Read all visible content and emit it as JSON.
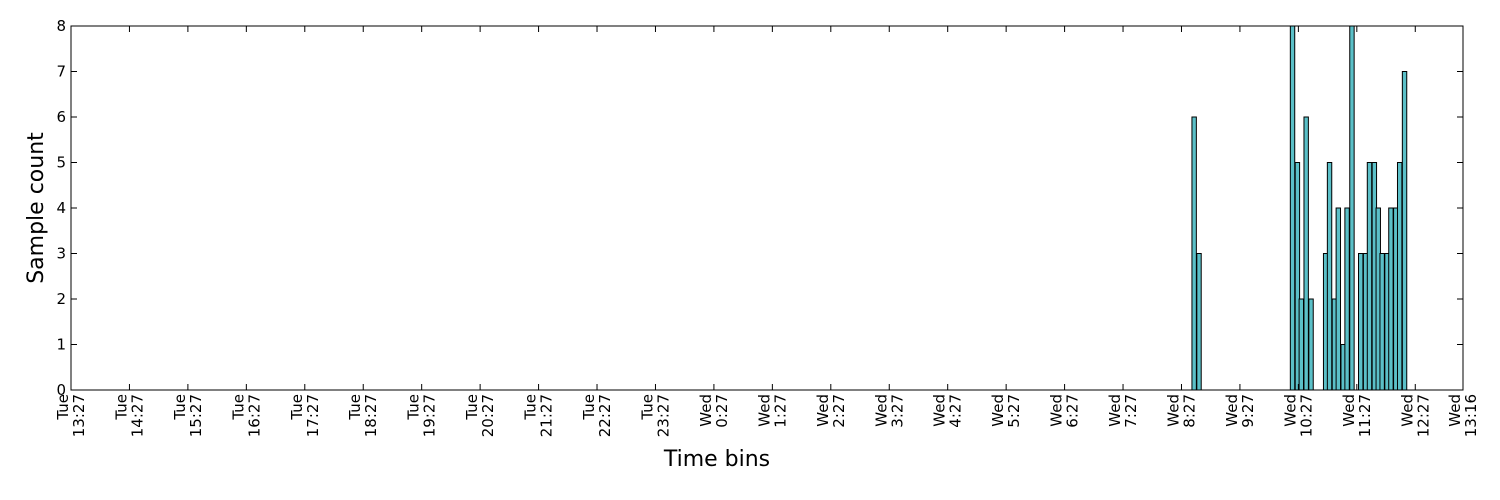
{
  "chart_data": {
    "type": "bar",
    "title": "",
    "xlabel": "Time bins",
    "ylabel": "Sample count",
    "ylim": [
      0,
      8
    ],
    "yticks": [
      0,
      1,
      2,
      3,
      4,
      5,
      6,
      7,
      8
    ],
    "grid": false,
    "legend": "none",
    "x_axis_start": "Tue 13:27",
    "x_axis_end": "Wed 13:16",
    "xticks": [
      {
        "t": "Tue 13:27",
        "label": [
          "Tue",
          "13:27"
        ]
      },
      {
        "t": "Tue 14:27",
        "label": [
          "Tue",
          "14:27"
        ]
      },
      {
        "t": "Tue 15:27",
        "label": [
          "Tue",
          "15:27"
        ]
      },
      {
        "t": "Tue 16:27",
        "label": [
          "Tue",
          "16:27"
        ]
      },
      {
        "t": "Tue 17:27",
        "label": [
          "Tue",
          "17:27"
        ]
      },
      {
        "t": "Tue 18:27",
        "label": [
          "Tue",
          "18:27"
        ]
      },
      {
        "t": "Tue 19:27",
        "label": [
          "Tue",
          "19:27"
        ]
      },
      {
        "t": "Tue 20:27",
        "label": [
          "Tue",
          "20:27"
        ]
      },
      {
        "t": "Tue 21:27",
        "label": [
          "Tue",
          "21:27"
        ]
      },
      {
        "t": "Tue 22:27",
        "label": [
          "Tue",
          "22:27"
        ]
      },
      {
        "t": "Tue 23:27",
        "label": [
          "Tue",
          "23:27"
        ]
      },
      {
        "t": "Wed 0:27",
        "label": [
          "Wed",
          "0:27"
        ]
      },
      {
        "t": "Wed 1:27",
        "label": [
          "Wed",
          "1:27"
        ]
      },
      {
        "t": "Wed 2:27",
        "label": [
          "Wed",
          "2:27"
        ]
      },
      {
        "t": "Wed 3:27",
        "label": [
          "Wed",
          "3:27"
        ]
      },
      {
        "t": "Wed 4:27",
        "label": [
          "Wed",
          "4:27"
        ]
      },
      {
        "t": "Wed 5:27",
        "label": [
          "Wed",
          "5:27"
        ]
      },
      {
        "t": "Wed 6:27",
        "label": [
          "Wed",
          "6:27"
        ]
      },
      {
        "t": "Wed 7:27",
        "label": [
          "Wed",
          "7:27"
        ]
      },
      {
        "t": "Wed 8:27",
        "label": [
          "Wed",
          "8:27"
        ]
      },
      {
        "t": "Wed 9:27",
        "label": [
          "Wed",
          "9:27"
        ]
      },
      {
        "t": "Wed 10:27",
        "label": [
          "Wed",
          "10:27"
        ]
      },
      {
        "t": "Wed 11:27",
        "label": [
          "Wed",
          "11:27"
        ]
      },
      {
        "t": "Wed 12:27",
        "label": [
          "Wed",
          "12:27"
        ]
      },
      {
        "t": "Wed 13:16",
        "label": [
          "Wed",
          "13:16"
        ]
      }
    ],
    "bar_color": "#5bc0c8",
    "bar_edge_color": "#000000",
    "bars": [
      {
        "t": "Wed 8:40",
        "value": 6
      },
      {
        "t": "Wed 8:45",
        "value": 3
      },
      {
        "t": "Wed 10:21",
        "value": 8
      },
      {
        "t": "Wed 10:26",
        "value": 5
      },
      {
        "t": "Wed 10:30",
        "value": 2
      },
      {
        "t": "Wed 10:35",
        "value": 6
      },
      {
        "t": "Wed 10:40",
        "value": 2
      },
      {
        "t": "Wed 10:55",
        "value": 3
      },
      {
        "t": "Wed 10:59",
        "value": 5
      },
      {
        "t": "Wed 11:04",
        "value": 2
      },
      {
        "t": "Wed 11:08",
        "value": 4
      },
      {
        "t": "Wed 11:13",
        "value": 1
      },
      {
        "t": "Wed 11:17",
        "value": 4
      },
      {
        "t": "Wed 11:22",
        "value": 8
      },
      {
        "t": "Wed 11:31",
        "value": 3
      },
      {
        "t": "Wed 11:36",
        "value": 3
      },
      {
        "t": "Wed 11:40",
        "value": 5
      },
      {
        "t": "Wed 11:45",
        "value": 5
      },
      {
        "t": "Wed 11:49",
        "value": 4
      },
      {
        "t": "Wed 11:53",
        "value": 3
      },
      {
        "t": "Wed 11:58",
        "value": 3
      },
      {
        "t": "Wed 12:02",
        "value": 4
      },
      {
        "t": "Wed 12:07",
        "value": 4
      },
      {
        "t": "Wed 12:11",
        "value": 5
      },
      {
        "t": "Wed 12:16",
        "value": 7
      }
    ]
  }
}
